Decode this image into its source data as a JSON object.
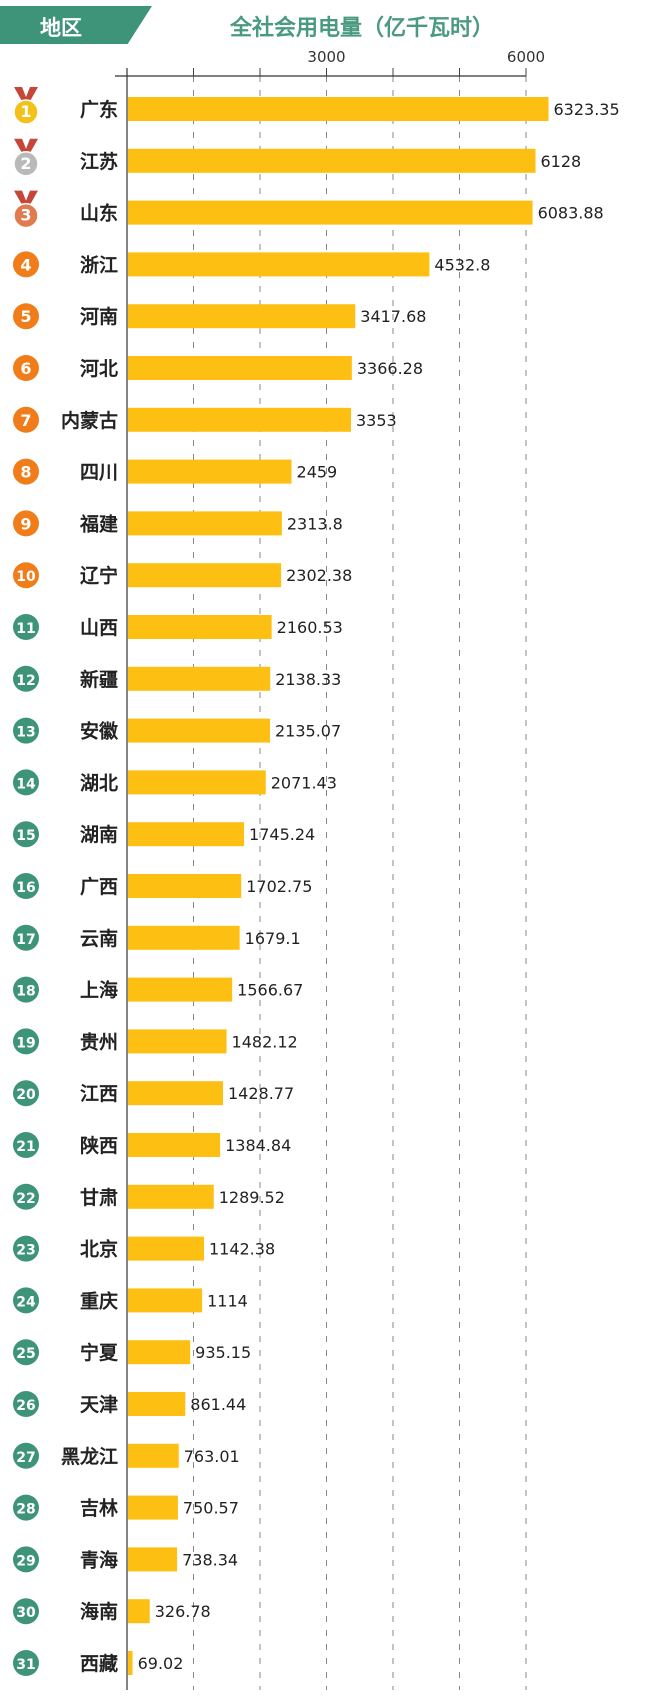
{
  "header": {
    "region_label": "地区"
  },
  "chart_data": {
    "type": "bar",
    "orientation": "horizontal",
    "title": "全社会用电量（亿千瓦时）",
    "xlim": [
      0,
      7000
    ],
    "x_tick_labels": [
      {
        "value": 3000,
        "label": "3000"
      },
      {
        "value": 6000,
        "label": "6000"
      }
    ],
    "grid": "vertical dashed every 1000",
    "colors": {
      "bar": "#fdbf12",
      "top3": [
        "#f2c21b",
        "#b9b9b9",
        "#e07a4f"
      ],
      "rank_4_10": "#f07d1a",
      "rank_11_31": "#3e9479",
      "title": "#4a9a80"
    },
    "categories": [
      "广东",
      "江苏",
      "山东",
      "浙江",
      "河南",
      "河北",
      "内蒙古",
      "四川",
      "福建",
      "辽宁",
      "山西",
      "新疆",
      "安徽",
      "湖北",
      "湖南",
      "广西",
      "云南",
      "上海",
      "贵州",
      "江西",
      "陕西",
      "甘肃",
      "北京",
      "重庆",
      "宁夏",
      "天津",
      "黑龙江",
      "吉林",
      "青海",
      "海南",
      "西藏"
    ],
    "ranks": [
      "1",
      "2",
      "3",
      "4",
      "5",
      "6",
      "7",
      "8",
      "9",
      "10",
      "11",
      "12",
      "13",
      "14",
      "15",
      "16",
      "17",
      "18",
      "19",
      "20",
      "21",
      "22",
      "23",
      "24",
      "25",
      "26",
      "27",
      "28",
      "29",
      "30",
      "31"
    ],
    "values": [
      6323.35,
      6128,
      6083.88,
      4532.8,
      3417.68,
      3366.28,
      3353,
      2459,
      2313.8,
      2302.38,
      2160.53,
      2138.33,
      2135.07,
      2071.43,
      1745.24,
      1702.75,
      1679.1,
      1566.67,
      1482.12,
      1428.77,
      1384.84,
      1289.52,
      1142.38,
      1114,
      935.15,
      861.44,
      763.01,
      750.57,
      738.34,
      326.78,
      69.02
    ],
    "value_labels": [
      "6323.35",
      "6128",
      "6083.88",
      "4532.8",
      "3417.68",
      "3366.28",
      "3353",
      "2459",
      "2313.8",
      "2302.38",
      "2160.53",
      "2138.33",
      "2135.07",
      "2071.43",
      "1745.24",
      "1702.75",
      "1679.1",
      "1566.67",
      "1482.12",
      "1428.77",
      "1384.84",
      "1289.52",
      "1142.38",
      "1114",
      "935.15",
      "861.44",
      "763.01",
      "750.57",
      "738.34",
      "326.78",
      "69.02"
    ]
  }
}
